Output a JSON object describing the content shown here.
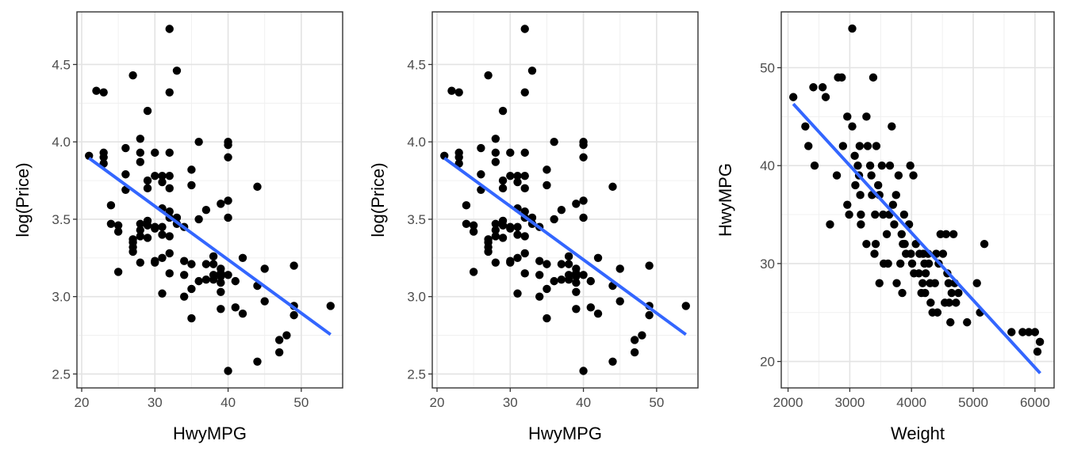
{
  "chart_data": [
    {
      "type": "scatter",
      "xlabel": "HwyMPG",
      "ylabel": "log(Price)",
      "xlim": [
        19.35,
        55.65
      ],
      "ylim": [
        2.41,
        4.84
      ],
      "xticks": [
        20,
        30,
        40,
        50
      ],
      "yticks": [
        2.5,
        3.0,
        3.5,
        4.0,
        4.5
      ],
      "xtick_labels": [
        "20",
        "30",
        "40",
        "50"
      ],
      "ytick_labels": [
        "2.5",
        "3.0",
        "3.5",
        "4.0",
        "4.5"
      ],
      "grid": true,
      "regression_line": {
        "x": [
          21,
          54
        ],
        "y": [
          3.895,
          2.755
        ],
        "color": "#3366FF"
      },
      "point_color": "#000000",
      "points": [
        [
          21,
          3.91
        ],
        [
          22,
          4.33
        ],
        [
          23,
          4.32
        ],
        [
          23,
          3.93
        ],
        [
          23,
          3.9
        ],
        [
          23,
          3.86
        ],
        [
          24,
          3.59
        ],
        [
          24,
          3.47
        ],
        [
          25,
          3.46
        ],
        [
          25,
          3.42
        ],
        [
          25,
          3.16
        ],
        [
          26,
          3.96
        ],
        [
          26,
          3.79
        ],
        [
          26,
          3.69
        ],
        [
          27,
          4.43
        ],
        [
          27,
          3.37
        ],
        [
          27,
          3.35
        ],
        [
          27,
          3.32
        ],
        [
          27,
          3.29
        ],
        [
          28,
          4.02
        ],
        [
          28,
          3.93
        ],
        [
          28,
          3.87
        ],
        [
          28,
          3.47
        ],
        [
          28,
          3.43
        ],
        [
          28,
          3.39
        ],
        [
          28,
          3.22
        ],
        [
          29,
          4.2
        ],
        [
          29,
          3.75
        ],
        [
          29,
          3.7
        ],
        [
          29,
          3.49
        ],
        [
          29,
          3.46
        ],
        [
          29,
          3.38
        ],
        [
          30,
          3.93
        ],
        [
          30,
          3.78
        ],
        [
          30,
          3.45
        ],
        [
          30,
          3.44
        ],
        [
          30,
          3.23
        ],
        [
          30,
          3.22
        ],
        [
          31,
          3.78
        ],
        [
          31,
          3.74
        ],
        [
          31,
          3.57
        ],
        [
          31,
          3.45
        ],
        [
          31,
          3.4
        ],
        [
          31,
          3.25
        ],
        [
          31,
          3.02
        ],
        [
          32,
          4.73
        ],
        [
          32,
          4.32
        ],
        [
          32,
          3.93
        ],
        [
          32,
          3.78
        ],
        [
          32,
          3.7
        ],
        [
          32,
          3.55
        ],
        [
          32,
          3.51
        ],
        [
          32,
          3.39
        ],
        [
          32,
          3.28
        ],
        [
          32,
          3.15
        ],
        [
          33,
          4.46
        ],
        [
          33,
          3.51
        ],
        [
          33,
          3.47
        ],
        [
          34,
          3.45
        ],
        [
          34,
          3.23
        ],
        [
          34,
          3.14
        ],
        [
          34,
          3.0
        ],
        [
          35,
          3.82
        ],
        [
          35,
          3.72
        ],
        [
          35,
          3.21
        ],
        [
          35,
          3.05
        ],
        [
          35,
          2.86
        ],
        [
          36,
          4.0
        ],
        [
          36,
          3.5
        ],
        [
          36,
          3.1
        ],
        [
          37,
          3.56
        ],
        [
          37,
          3.21
        ],
        [
          37,
          3.11
        ],
        [
          38,
          3.26
        ],
        [
          38,
          3.21
        ],
        [
          38,
          3.14
        ],
        [
          38,
          3.11
        ],
        [
          39,
          3.6
        ],
        [
          39,
          3.18
        ],
        [
          39,
          3.15
        ],
        [
          39,
          3.13
        ],
        [
          39,
          3.09
        ],
        [
          39,
          3.03
        ],
        [
          39,
          2.92
        ],
        [
          40,
          4.0
        ],
        [
          40,
          3.98
        ],
        [
          40,
          3.9
        ],
        [
          40,
          3.62
        ],
        [
          40,
          3.51
        ],
        [
          40,
          3.14
        ],
        [
          40,
          2.52
        ],
        [
          41,
          3.1
        ],
        [
          41,
          2.93
        ],
        [
          42,
          3.25
        ],
        [
          42,
          2.89
        ],
        [
          44,
          3.71
        ],
        [
          44,
          3.07
        ],
        [
          44,
          2.58
        ],
        [
          45,
          3.18
        ],
        [
          45,
          2.97
        ],
        [
          47,
          2.72
        ],
        [
          47,
          2.64
        ],
        [
          48,
          2.75
        ],
        [
          49,
          3.2
        ],
        [
          49,
          2.94
        ],
        [
          49,
          2.88
        ],
        [
          54,
          2.94
        ]
      ]
    },
    {
      "type": "scatter",
      "xlabel": "HwyMPG",
      "ylabel": "log(Price)",
      "xlim": [
        19.35,
        55.65
      ],
      "ylim": [
        2.41,
        4.84
      ],
      "xticks": [
        20,
        30,
        40,
        50
      ],
      "yticks": [
        2.5,
        3.0,
        3.5,
        4.0,
        4.5
      ],
      "xtick_labels": [
        "20",
        "30",
        "40",
        "50"
      ],
      "ytick_labels": [
        "2.5",
        "3.0",
        "3.5",
        "4.0",
        "4.5"
      ],
      "grid": true,
      "regression_line": {
        "x": [
          21,
          54
        ],
        "y": [
          3.895,
          2.755
        ],
        "color": "#3366FF"
      },
      "point_color": "#000000",
      "points": [
        [
          21,
          3.91
        ],
        [
          22,
          4.33
        ],
        [
          23,
          4.32
        ],
        [
          23,
          3.93
        ],
        [
          23,
          3.9
        ],
        [
          23,
          3.86
        ],
        [
          24,
          3.59
        ],
        [
          24,
          3.47
        ],
        [
          25,
          3.46
        ],
        [
          25,
          3.42
        ],
        [
          25,
          3.16
        ],
        [
          26,
          3.96
        ],
        [
          26,
          3.79
        ],
        [
          26,
          3.69
        ],
        [
          27,
          4.43
        ],
        [
          27,
          3.37
        ],
        [
          27,
          3.35
        ],
        [
          27,
          3.32
        ],
        [
          27,
          3.29
        ],
        [
          28,
          4.02
        ],
        [
          28,
          3.93
        ],
        [
          28,
          3.87
        ],
        [
          28,
          3.47
        ],
        [
          28,
          3.43
        ],
        [
          28,
          3.39
        ],
        [
          28,
          3.22
        ],
        [
          29,
          4.2
        ],
        [
          29,
          3.75
        ],
        [
          29,
          3.7
        ],
        [
          29,
          3.49
        ],
        [
          29,
          3.46
        ],
        [
          29,
          3.38
        ],
        [
          30,
          3.93
        ],
        [
          30,
          3.78
        ],
        [
          30,
          3.45
        ],
        [
          30,
          3.44
        ],
        [
          30,
          3.23
        ],
        [
          30,
          3.22
        ],
        [
          31,
          3.78
        ],
        [
          31,
          3.74
        ],
        [
          31,
          3.57
        ],
        [
          31,
          3.45
        ],
        [
          31,
          3.4
        ],
        [
          31,
          3.25
        ],
        [
          31,
          3.02
        ],
        [
          32,
          4.73
        ],
        [
          32,
          4.32
        ],
        [
          32,
          3.93
        ],
        [
          32,
          3.78
        ],
        [
          32,
          3.7
        ],
        [
          32,
          3.55
        ],
        [
          32,
          3.51
        ],
        [
          32,
          3.39
        ],
        [
          32,
          3.28
        ],
        [
          32,
          3.15
        ],
        [
          33,
          4.46
        ],
        [
          33,
          3.51
        ],
        [
          33,
          3.47
        ],
        [
          34,
          3.45
        ],
        [
          34,
          3.23
        ],
        [
          34,
          3.14
        ],
        [
          34,
          3.0
        ],
        [
          35,
          3.82
        ],
        [
          35,
          3.72
        ],
        [
          35,
          3.21
        ],
        [
          35,
          3.05
        ],
        [
          35,
          2.86
        ],
        [
          36,
          4.0
        ],
        [
          36,
          3.5
        ],
        [
          36,
          3.1
        ],
        [
          37,
          3.56
        ],
        [
          37,
          3.21
        ],
        [
          37,
          3.11
        ],
        [
          38,
          3.26
        ],
        [
          38,
          3.21
        ],
        [
          38,
          3.14
        ],
        [
          38,
          3.11
        ],
        [
          39,
          3.6
        ],
        [
          39,
          3.18
        ],
        [
          39,
          3.15
        ],
        [
          39,
          3.13
        ],
        [
          39,
          3.09
        ],
        [
          39,
          3.03
        ],
        [
          39,
          2.92
        ],
        [
          40,
          4.0
        ],
        [
          40,
          3.98
        ],
        [
          40,
          3.9
        ],
        [
          40,
          3.62
        ],
        [
          40,
          3.51
        ],
        [
          40,
          3.14
        ],
        [
          40,
          2.52
        ],
        [
          41,
          3.1
        ],
        [
          41,
          2.93
        ],
        [
          42,
          3.25
        ],
        [
          42,
          2.89
        ],
        [
          44,
          3.71
        ],
        [
          44,
          3.07
        ],
        [
          44,
          2.58
        ],
        [
          45,
          3.18
        ],
        [
          45,
          2.97
        ],
        [
          47,
          2.72
        ],
        [
          47,
          2.64
        ],
        [
          48,
          2.75
        ],
        [
          49,
          3.2
        ],
        [
          49,
          2.94
        ],
        [
          49,
          2.88
        ],
        [
          54,
          2.94
        ]
      ]
    },
    {
      "type": "scatter",
      "xlabel": "Weight",
      "ylabel": "HwyMPG",
      "xlim": [
        1890,
        6310
      ],
      "ylim": [
        17.3,
        55.7
      ],
      "xticks": [
        2000,
        3000,
        4000,
        5000,
        6000
      ],
      "yticks": [
        20,
        30,
        40,
        50
      ],
      "xtick_labels": [
        "2000",
        "3000",
        "4000",
        "5000",
        "6000"
      ],
      "ytick_labels": [
        "20",
        "30",
        "40",
        "50"
      ],
      "grid": true,
      "regression_line": {
        "x": [
          2085,
          6085
        ],
        "y": [
          46.3,
          18.8
        ],
        "color": "#3366FF"
      },
      "point_color": "#000000",
      "points": [
        [
          2085,
          47
        ],
        [
          2280,
          44
        ],
        [
          2330,
          42
        ],
        [
          2410,
          48
        ],
        [
          2430,
          40
        ],
        [
          2560,
          48
        ],
        [
          2610,
          47
        ],
        [
          2680,
          34
        ],
        [
          2790,
          39
        ],
        [
          2810,
          49
        ],
        [
          2870,
          49
        ],
        [
          2890,
          42
        ],
        [
          2960,
          45
        ],
        [
          2960,
          36
        ],
        [
          2990,
          35
        ],
        [
          3040,
          44
        ],
        [
          3040,
          54
        ],
        [
          3080,
          41
        ],
        [
          3090,
          38
        ],
        [
          3130,
          40
        ],
        [
          3150,
          39
        ],
        [
          3160,
          42
        ],
        [
          3170,
          37
        ],
        [
          3180,
          35
        ],
        [
          3180,
          34
        ],
        [
          3270,
          45
        ],
        [
          3270,
          32
        ],
        [
          3290,
          42
        ],
        [
          3330,
          40
        ],
        [
          3350,
          39
        ],
        [
          3360,
          37
        ],
        [
          3380,
          49
        ],
        [
          3400,
          31
        ],
        [
          3410,
          35
        ],
        [
          3420,
          32
        ],
        [
          3430,
          42
        ],
        [
          3460,
          38
        ],
        [
          3480,
          37
        ],
        [
          3480,
          28
        ],
        [
          3520,
          40
        ],
        [
          3540,
          35
        ],
        [
          3550,
          30
        ],
        [
          3600,
          33
        ],
        [
          3620,
          30
        ],
        [
          3640,
          35
        ],
        [
          3650,
          40
        ],
        [
          3680,
          44
        ],
        [
          3700,
          36
        ],
        [
          3720,
          34
        ],
        [
          3750,
          37
        ],
        [
          3760,
          28
        ],
        [
          3790,
          39
        ],
        [
          3820,
          30
        ],
        [
          3840,
          33
        ],
        [
          3850,
          27
        ],
        [
          3860,
          32
        ],
        [
          3880,
          35
        ],
        [
          3890,
          32
        ],
        [
          3910,
          31
        ],
        [
          3960,
          34
        ],
        [
          3980,
          40
        ],
        [
          3990,
          31
        ],
        [
          4010,
          30
        ],
        [
          4030,
          39
        ],
        [
          4040,
          29
        ],
        [
          4070,
          32
        ],
        [
          4120,
          29
        ],
        [
          4130,
          31
        ],
        [
          4160,
          27
        ],
        [
          4180,
          28
        ],
        [
          4190,
          31
        ],
        [
          4210,
          30
        ],
        [
          4220,
          27
        ],
        [
          4230,
          29
        ],
        [
          4270,
          31
        ],
        [
          4280,
          30
        ],
        [
          4300,
          28
        ],
        [
          4310,
          26
        ],
        [
          4340,
          25
        ],
        [
          4380,
          28
        ],
        [
          4400,
          31
        ],
        [
          4420,
          25
        ],
        [
          4440,
          30
        ],
        [
          4470,
          33
        ],
        [
          4510,
          31
        ],
        [
          4540,
          26
        ],
        [
          4560,
          33
        ],
        [
          4580,
          29
        ],
        [
          4600,
          28
        ],
        [
          4610,
          26
        ],
        [
          4630,
          24
        ],
        [
          4650,
          27
        ],
        [
          4680,
          33
        ],
        [
          4700,
          28
        ],
        [
          4720,
          26
        ],
        [
          4760,
          27
        ],
        [
          4900,
          24
        ],
        [
          5060,
          28
        ],
        [
          5110,
          25
        ],
        [
          5180,
          32
        ],
        [
          5620,
          23
        ],
        [
          5800,
          23
        ],
        [
          5900,
          23
        ],
        [
          6000,
          23
        ],
        [
          6040,
          21
        ],
        [
          6080,
          22
        ]
      ]
    }
  ]
}
